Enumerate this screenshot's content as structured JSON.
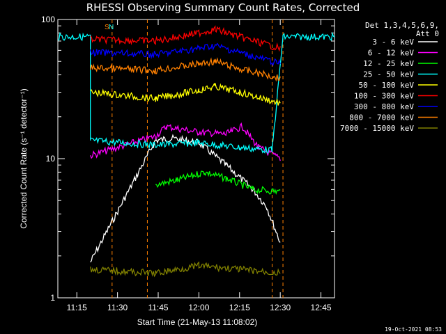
{
  "chart_data": {
    "type": "line",
    "title": "RHESSI Observing Summary Count Rates, Corrected",
    "xlabel": "Start Time (21-May-13 11:08:02)",
    "ylabel": "Corrected Count Rate (s⁻¹ detector⁻¹)",
    "yscale": "log",
    "ylim": [
      1,
      100
    ],
    "xlim": [
      "11:08",
      "12:50"
    ],
    "x_ticks": [
      "11:15",
      "11:30",
      "11:45",
      "12:00",
      "12:15",
      "12:30",
      "12:45"
    ],
    "y_ticks": [
      "1",
      "10",
      "100"
    ],
    "legend_title": [
      "Det 1,3,4,5,6,9,",
      "Att 0"
    ],
    "legend_position": "right",
    "grid": false,
    "gaps": [
      [
        "11:28",
        "11:41"
      ],
      [
        "12:27",
        "12:31"
      ]
    ],
    "annotations": [
      "S",
      "N"
    ],
    "series": [
      {
        "name": "3 - 6 keV",
        "color": "#ffffff",
        "points": [
          [
            "11:20",
            1.8
          ],
          [
            "11:44",
            13.5
          ],
          [
            "11:50",
            14
          ],
          [
            "12:00",
            13
          ],
          [
            "12:10",
            9
          ],
          [
            "12:20",
            6
          ],
          [
            "12:25",
            4.5
          ],
          [
            "12:30",
            2.5
          ]
        ]
      },
      {
        "name": "6 - 12 keV",
        "color": "#ff00ff",
        "points": [
          [
            "11:20",
            10.5
          ],
          [
            "11:44",
            14.5
          ],
          [
            "11:48",
            17
          ],
          [
            "12:00",
            15.5
          ],
          [
            "12:10",
            15
          ],
          [
            "12:16",
            17
          ],
          [
            "12:22",
            12
          ],
          [
            "12:30",
            10
          ]
        ]
      },
      {
        "name": "12 - 25 keV",
        "color": "#00ff00",
        "points": [
          [
            "11:44",
            6.5
          ],
          [
            "11:52",
            7
          ],
          [
            "12:02",
            8
          ],
          [
            "12:10",
            7.2
          ],
          [
            "12:20",
            6
          ],
          [
            "12:30",
            5.8
          ]
        ]
      },
      {
        "name": "25 - 50 keV",
        "color": "#00ffff",
        "points": [
          [
            "11:08",
            75
          ],
          [
            "11:20",
            75
          ],
          [
            "11:20",
            13.5
          ],
          [
            "11:44",
            12.5
          ],
          [
            "12:00",
            13
          ],
          [
            "12:15",
            12
          ],
          [
            "12:27",
            11.5
          ],
          [
            "12:31",
            75
          ],
          [
            "12:50",
            75
          ]
        ]
      },
      {
        "name": "50 - 100 keV",
        "color": "#ffff00",
        "points": [
          [
            "11:20",
            30
          ],
          [
            "11:44",
            27
          ],
          [
            "12:00",
            31
          ],
          [
            "12:06",
            33
          ],
          [
            "12:15",
            30
          ],
          [
            "12:30",
            25
          ]
        ]
      },
      {
        "name": "100 - 300 keV",
        "color": "#ff0000",
        "points": [
          [
            "11:20",
            72
          ],
          [
            "11:44",
            70
          ],
          [
            "12:00",
            80
          ],
          [
            "12:06",
            85
          ],
          [
            "12:15",
            75
          ],
          [
            "12:30",
            62
          ]
        ]
      },
      {
        "name": "300 - 800 keV",
        "color": "#0000ff",
        "points": [
          [
            "11:20",
            58
          ],
          [
            "11:44",
            56
          ],
          [
            "12:00",
            62
          ],
          [
            "12:06",
            65
          ],
          [
            "12:15",
            58
          ],
          [
            "12:30",
            48
          ]
        ]
      },
      {
        "name": "800 - 7000 keV",
        "color": "#ff8000",
        "points": [
          [
            "11:20",
            45
          ],
          [
            "11:44",
            43
          ],
          [
            "12:00",
            48
          ],
          [
            "12:06",
            50
          ],
          [
            "12:15",
            44
          ],
          [
            "12:30",
            38
          ]
        ]
      },
      {
        "name": "7000 - 15000 keV",
        "color": "#808000",
        "points": [
          [
            "11:20",
            1.6
          ],
          [
            "11:44",
            1.5
          ],
          [
            "12:00",
            1.7
          ],
          [
            "12:15",
            1.6
          ],
          [
            "12:30",
            1.5
          ]
        ]
      }
    ]
  },
  "footer": "19-Oct-2021 08:53"
}
